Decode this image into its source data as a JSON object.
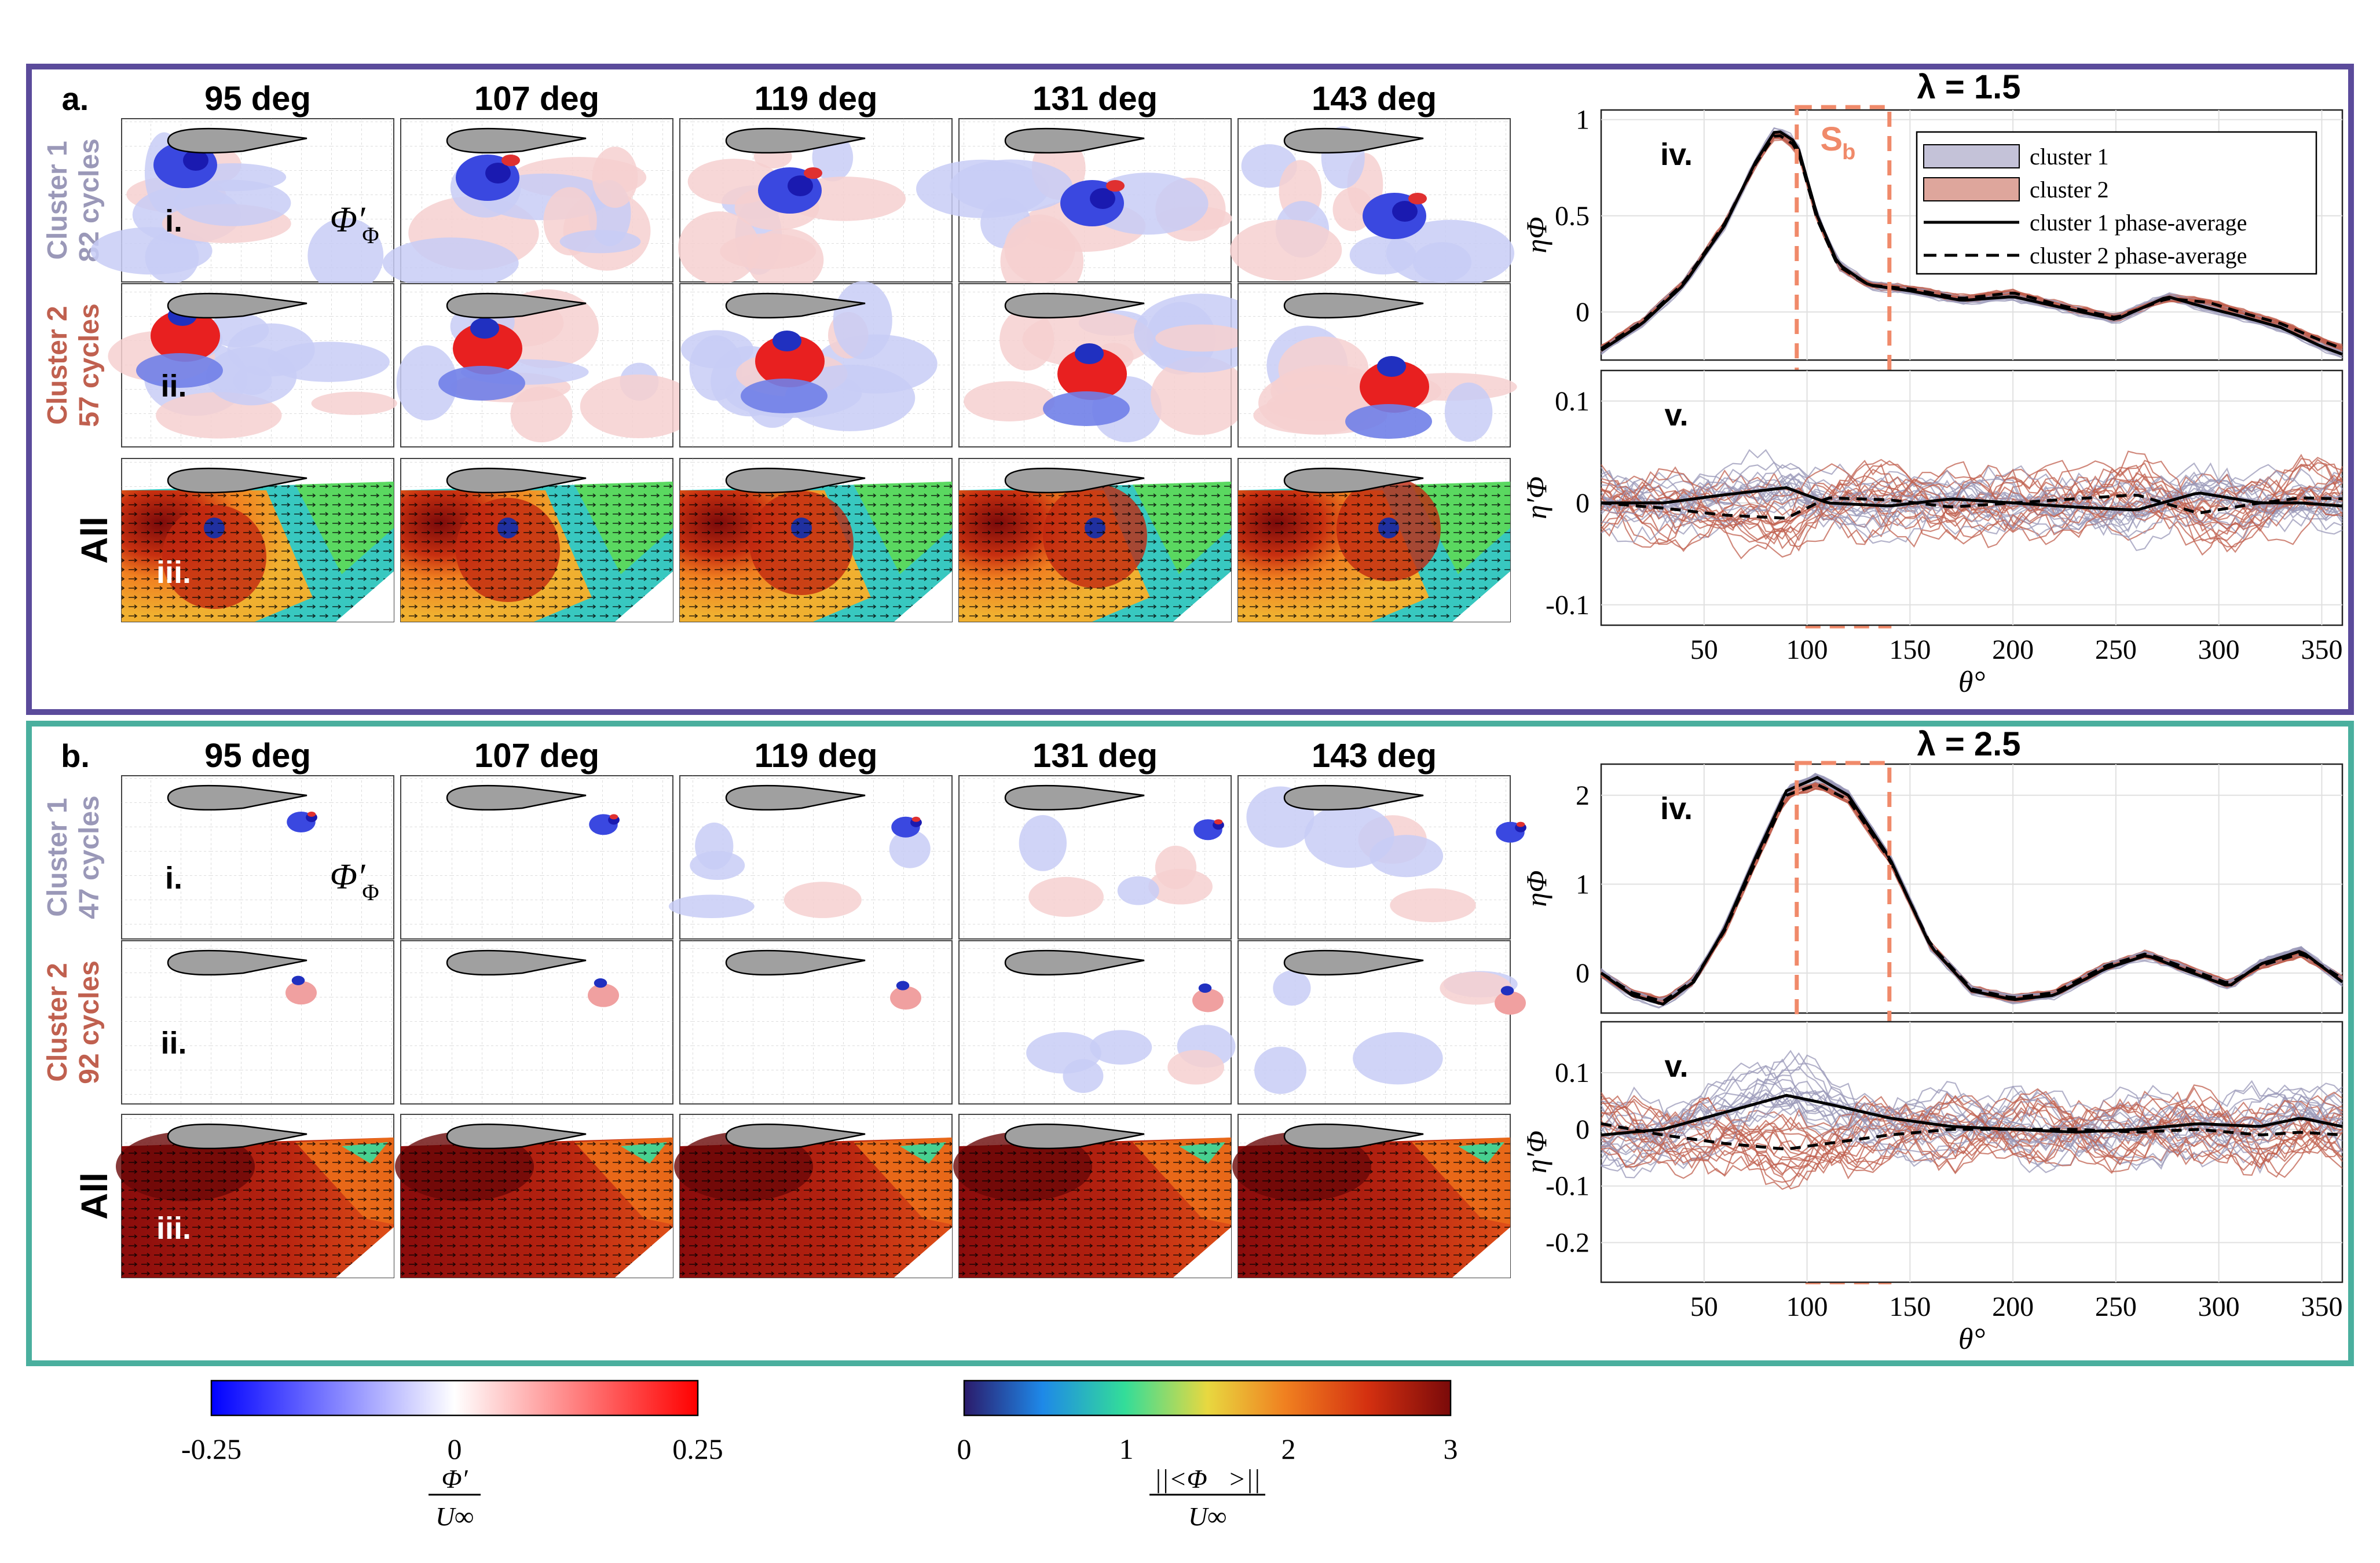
{
  "figure": {
    "angles": [
      "95 deg",
      "107 deg",
      "119 deg",
      "131 deg",
      "143 deg"
    ],
    "phi_prime_label": "Φ′",
    "phi_sub": "Φ",
    "all_label": "All",
    "row_labels": [
      "i.",
      "ii.",
      "iii."
    ],
    "panels": [
      {
        "label": "a.",
        "frame_color": "#5b4b9b",
        "lambda_label": "λ = 1.5",
        "clusters": [
          {
            "name": "Cluster 1",
            "cycles": "82 cycles",
            "color": "#9a98b8"
          },
          {
            "name": "Cluster 2",
            "cycles": "57 cycles",
            "color": "#c0604f"
          }
        ]
      },
      {
        "label": "b.",
        "frame_color": "#4aaf9e",
        "lambda_label": "λ = 2.5",
        "clusters": [
          {
            "name": "Cluster 1",
            "cycles": "47 cycles",
            "color": "#9a98b8"
          },
          {
            "name": "Cluster 2",
            "cycles": "92 cycles",
            "color": "#c0604f"
          }
        ]
      }
    ],
    "colorbars": {
      "fluctuation": {
        "ticks": [
          "-0.25",
          "0",
          "0.25"
        ],
        "label_num": "Φ′",
        "label_den": "U∞",
        "colors": [
          "#0000ff",
          "#ffffff",
          "#ff0000"
        ]
      },
      "magnitude": {
        "ticks": [
          "0",
          "1",
          "2",
          "3"
        ],
        "label_num": "||<Φ⃗>||",
        "label_den": "U∞",
        "colors": [
          "#2b1b6b",
          "#1e88e8",
          "#33dd99",
          "#e8d840",
          "#f08020",
          "#d43010",
          "#7a0a0a"
        ]
      }
    }
  },
  "chart_data": [
    {
      "type": "line",
      "title": "λ = 1.5",
      "panel": "iv.",
      "ylabel": "ηΦ",
      "xlabel": "θ°",
      "xlim": [
        0,
        360
      ],
      "ylim": [
        -0.25,
        1.05
      ],
      "xticks": [
        50,
        100,
        150,
        200,
        250,
        300,
        350
      ],
      "yticks": [
        0,
        0.5,
        1
      ],
      "ytick_labels": [
        "0",
        "0.5",
        "1"
      ],
      "shade_label": "Sb",
      "shade_range": [
        95,
        140
      ],
      "legend": [
        "cluster 1",
        "cluster 2",
        "cluster 1 phase-average",
        "cluster 2 phase-average"
      ],
      "x": [
        0,
        20,
        40,
        60,
        75,
        85,
        95,
        105,
        115,
        130,
        150,
        175,
        200,
        225,
        250,
        275,
        295,
        310,
        330,
        350,
        360
      ],
      "series": [
        {
          "name": "cluster 1 phase-average",
          "values": [
            -0.2,
            -0.06,
            0.14,
            0.45,
            0.78,
            0.95,
            0.88,
            0.5,
            0.25,
            0.14,
            0.11,
            0.06,
            0.08,
            0.02,
            -0.04,
            0.08,
            0.02,
            -0.02,
            -0.08,
            -0.18,
            -0.22
          ]
        },
        {
          "name": "cluster 2 phase-average",
          "values": [
            -0.19,
            -0.05,
            0.15,
            0.46,
            0.77,
            0.93,
            0.86,
            0.48,
            0.24,
            0.14,
            0.12,
            0.07,
            0.1,
            0.03,
            -0.03,
            0.07,
            0.05,
            0.0,
            -0.06,
            -0.15,
            -0.19
          ]
        }
      ]
    },
    {
      "type": "line",
      "panel": "v.",
      "ylabel": "η′Φ",
      "xlabel": "θ°",
      "xlim": [
        0,
        360
      ],
      "ylim": [
        -0.12,
        0.13
      ],
      "xticks": [
        50,
        100,
        150,
        200,
        250,
        300,
        350
      ],
      "yticks": [
        -0.1,
        0,
        0.1
      ],
      "ytick_labels": [
        "-0.1",
        "0",
        "0.1"
      ],
      "shade_range": [
        95,
        140
      ],
      "x": [
        0,
        30,
        60,
        90,
        110,
        140,
        170,
        200,
        230,
        260,
        290,
        320,
        340,
        360
      ],
      "series": [
        {
          "name": "cluster 1 phase-average",
          "values": [
            0.0,
            0.0,
            0.008,
            0.015,
            0.0,
            -0.003,
            0.004,
            0.0,
            -0.004,
            -0.007,
            0.01,
            0.0,
            0.0,
            -0.003
          ]
        },
        {
          "name": "cluster 2 phase-average",
          "values": [
            0.0,
            -0.005,
            -0.012,
            -0.015,
            0.005,
            0.003,
            -0.004,
            0.0,
            0.004,
            0.008,
            -0.01,
            0.0,
            0.005,
            0.004
          ]
        }
      ]
    },
    {
      "type": "line",
      "title": "λ = 2.5",
      "panel": "iv.",
      "ylabel": "ηΦ",
      "xlabel": "θ°",
      "xlim": [
        0,
        360
      ],
      "ylim": [
        -0.45,
        2.35
      ],
      "xticks": [
        50,
        100,
        150,
        200,
        250,
        300,
        350
      ],
      "yticks": [
        0,
        1,
        2
      ],
      "ytick_labels": [
        "0",
        "1",
        "2"
      ],
      "shade_range": [
        95,
        140
      ],
      "x": [
        0,
        15,
        30,
        45,
        60,
        75,
        90,
        105,
        120,
        140,
        160,
        180,
        200,
        220,
        245,
        265,
        285,
        305,
        320,
        340,
        360
      ],
      "series": [
        {
          "name": "cluster 1 phase-average",
          "values": [
            0.0,
            -0.25,
            -0.35,
            -0.1,
            0.5,
            1.3,
            2.05,
            2.2,
            2.0,
            1.3,
            0.3,
            -0.2,
            -0.3,
            -0.25,
            0.05,
            0.2,
            0.02,
            -0.15,
            0.1,
            0.25,
            -0.1
          ]
        },
        {
          "name": "cluster 2 phase-average",
          "values": [
            0.0,
            -0.22,
            -0.32,
            -0.08,
            0.48,
            1.25,
            2.0,
            2.12,
            1.95,
            1.28,
            0.32,
            -0.18,
            -0.28,
            -0.22,
            0.08,
            0.22,
            0.05,
            -0.12,
            0.08,
            0.22,
            -0.06
          ]
        }
      ]
    },
    {
      "type": "line",
      "panel": "v.",
      "ylabel": "η′Φ",
      "xlabel": "θ°",
      "xlim": [
        0,
        360
      ],
      "ylim": [
        -0.27,
        0.19
      ],
      "xticks": [
        50,
        100,
        150,
        200,
        250,
        300,
        350
      ],
      "yticks": [
        -0.2,
        -0.1,
        0,
        0.1
      ],
      "ytick_labels": [
        "-0.2",
        "-0.1",
        "0",
        "0.1"
      ],
      "shade_range": [
        95,
        140
      ],
      "x": [
        0,
        30,
        60,
        90,
        110,
        140,
        170,
        200,
        230,
        260,
        290,
        320,
        340,
        360
      ],
      "series": [
        {
          "name": "cluster 1 phase-average",
          "values": [
            -0.01,
            0.0,
            0.03,
            0.06,
            0.045,
            0.02,
            0.005,
            0.0,
            -0.005,
            0.0,
            0.01,
            0.005,
            0.02,
            0.005
          ]
        },
        {
          "name": "cluster 2 phase-average",
          "values": [
            0.01,
            -0.01,
            -0.025,
            -0.035,
            -0.025,
            -0.01,
            0.0,
            0.0,
            0.0,
            -0.005,
            0.0,
            -0.01,
            -0.005,
            -0.01
          ]
        }
      ]
    }
  ]
}
